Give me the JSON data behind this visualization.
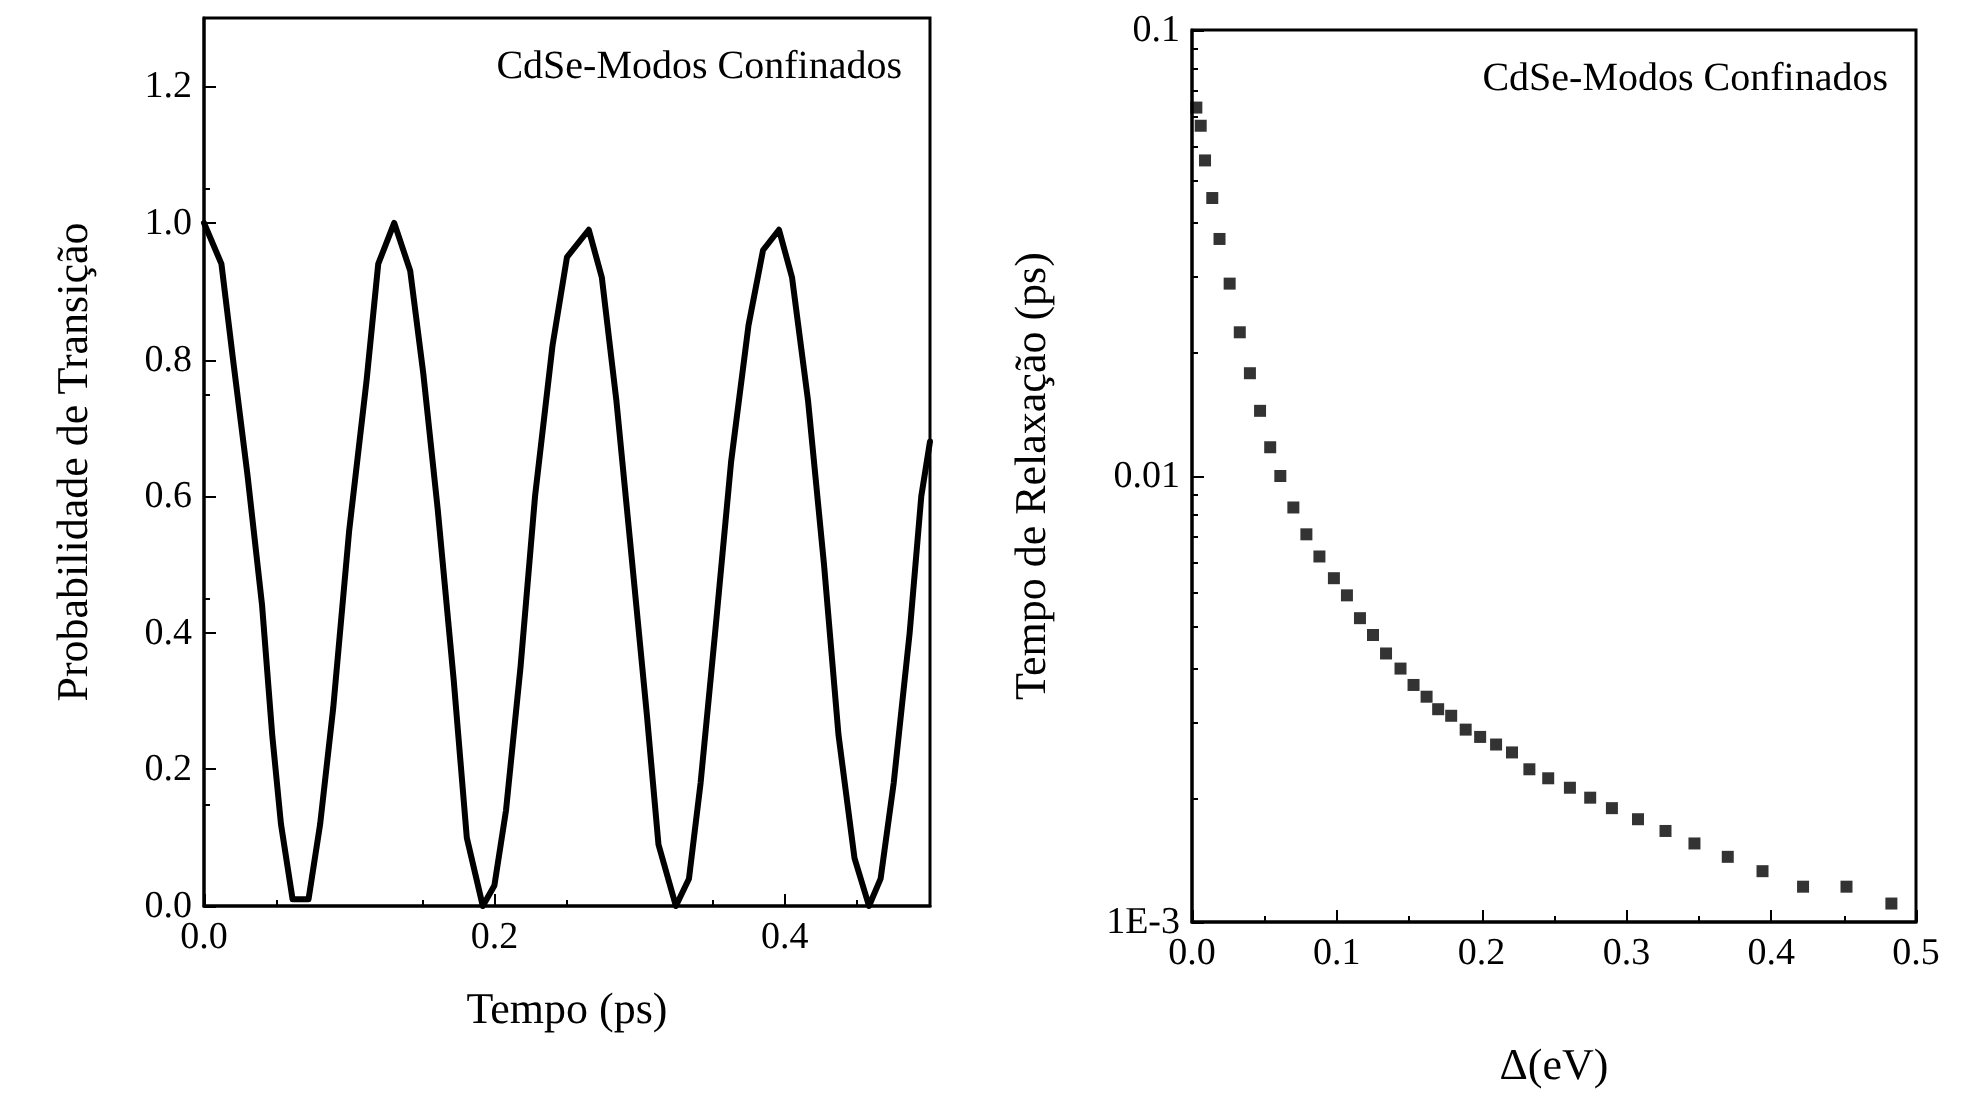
{
  "chart_data": [
    {
      "type": "line",
      "xlabel": "Tempo (ps)",
      "ylabel": "Probabilidade de Transição",
      "annotations": [
        "CdSe-Modos Confinados"
      ],
      "marker": "none",
      "line_style": "solid",
      "xlim": [
        0,
        0.5
      ],
      "xticks": [
        {
          "value": 0,
          "label": "0.0"
        },
        0.2,
        0.4
      ],
      "ylim": [
        0,
        1.3
      ],
      "yticks": [
        {
          "value": 0,
          "label": "0.0"
        },
        0.2,
        0.4,
        0.6,
        0.8,
        {
          "value": 1,
          "label": "1.0"
        },
        1.2
      ],
      "series": [
        {
          "color": "#000000",
          "x": [
            0,
            0.012,
            0.02,
            0.03,
            0.04,
            0.047,
            0.053,
            0.061,
            0.072,
            0.08,
            0.089,
            0.1,
            0.112,
            0.12,
            0.131,
            0.142,
            0.151,
            0.161,
            0.172,
            0.181,
            0.192,
            0.2,
            0.208,
            0.218,
            0.228,
            0.24,
            0.25,
            0.265,
            0.274,
            0.284,
            0.295,
            0.305,
            0.313,
            0.325,
            0.334,
            0.342,
            0.352,
            0.363,
            0.375,
            0.385,
            0.396,
            0.405,
            0.416,
            0.427,
            0.437,
            0.448,
            0.458,
            0.466,
            0.475,
            0.486,
            0.494,
            0.5
          ],
          "values": [
            1.0,
            0.94,
            0.8,
            0.63,
            0.44,
            0.25,
            0.12,
            0.01,
            0.01,
            0.12,
            0.29,
            0.55,
            0.77,
            0.94,
            1.0,
            0.93,
            0.78,
            0.58,
            0.33,
            0.1,
            0.0,
            0.03,
            0.14,
            0.35,
            0.6,
            0.82,
            0.95,
            0.99,
            0.92,
            0.74,
            0.5,
            0.28,
            0.09,
            0.0,
            0.04,
            0.18,
            0.4,
            0.65,
            0.85,
            0.96,
            0.99,
            0.92,
            0.74,
            0.5,
            0.25,
            0.07,
            0.0,
            0.04,
            0.18,
            0.4,
            0.6,
            0.68
          ]
        }
      ]
    },
    {
      "type": "scatter",
      "xlabel": "Δ(eV)",
      "ylabel": "Tempo de Relaxação (ps)",
      "annotations": [
        "CdSe-Modos Confinados"
      ],
      "marker": "square",
      "log": "y",
      "xlim": [
        0,
        0.5
      ],
      "xticks": [
        {
          "value": 0,
          "label": "0.0"
        },
        0.1,
        0.2,
        0.3,
        0.4,
        0.5
      ],
      "ylim": [
        0.001,
        0.1
      ],
      "yticks": [
        {
          "value": 0.001,
          "label": "1E-3"
        },
        0.01,
        0.1
      ],
      "series": [
        {
          "color": "#000000",
          "x": [
            0.003,
            0.006,
            0.009,
            0.014,
            0.019,
            0.026,
            0.033,
            0.04,
            0.047,
            0.054,
            0.061,
            0.07,
            0.079,
            0.088,
            0.098,
            0.107,
            0.116,
            0.125,
            0.134,
            0.144,
            0.153,
            0.162,
            0.17,
            0.179,
            0.189,
            0.199,
            0.21,
            0.221,
            0.233,
            0.246,
            0.261,
            0.275,
            0.29,
            0.308,
            0.327,
            0.347,
            0.37,
            0.394,
            0.422,
            0.452,
            0.483
          ],
          "values": [
            0.067,
            0.061,
            0.051,
            0.042,
            0.034,
            0.027,
            0.021,
            0.017,
            0.014,
            0.0116,
            0.01,
            0.0085,
            0.0074,
            0.0066,
            0.0059,
            0.0054,
            0.0048,
            0.0044,
            0.004,
            0.0037,
            0.0034,
            0.0032,
            0.003,
            0.0029,
            0.0027,
            0.0026,
            0.0025,
            0.0024,
            0.0022,
            0.0021,
            0.002,
            0.0019,
            0.0018,
            0.0017,
            0.0016,
            0.0015,
            0.0014,
            0.0013,
            0.0012,
            0.0012,
            0.0011
          ]
        }
      ]
    }
  ]
}
